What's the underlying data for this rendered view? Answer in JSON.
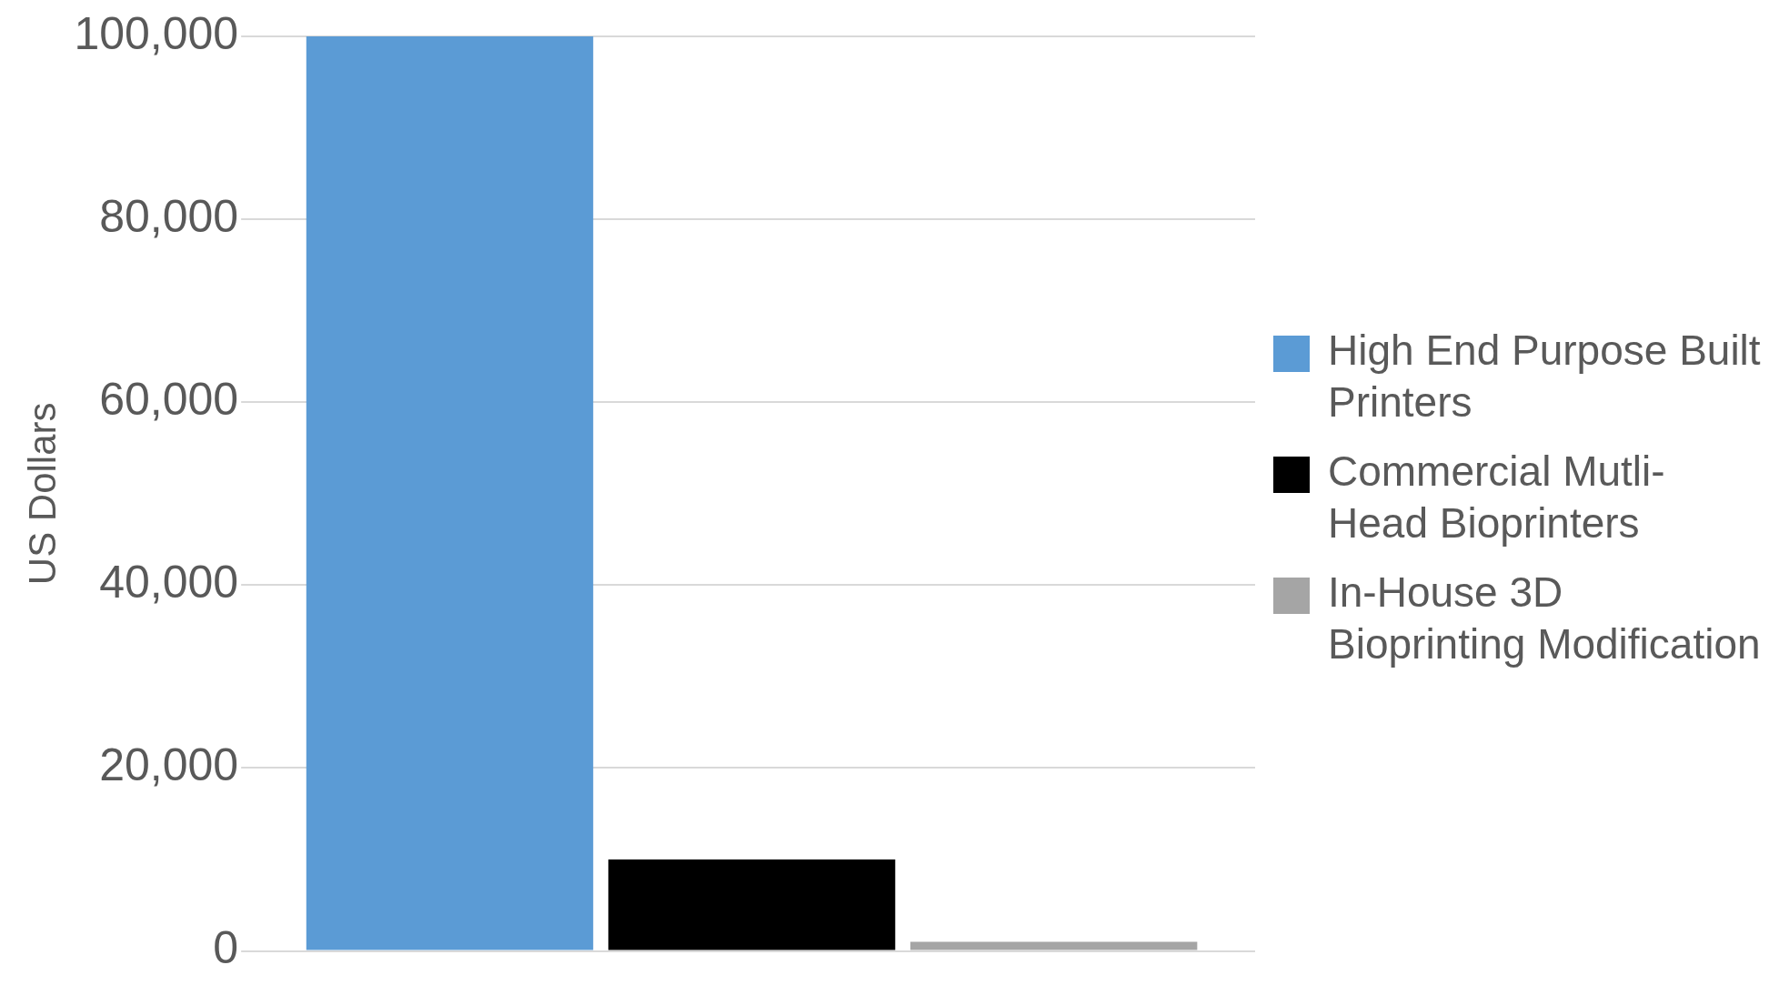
{
  "chart_data": {
    "type": "bar",
    "ylabel": "US Dollars",
    "categories": [
      null
    ],
    "series": [
      {
        "name": "High End Purpose Built Printers",
        "color": "#5b9bd5",
        "values": [
          100000
        ]
      },
      {
        "name": "Commercial Mutli-Head Bioprinters",
        "color": "#000000",
        "values": [
          10000
        ]
      },
      {
        "name": "In-House 3D Bioprinting Modification",
        "color": "#a5a5a5",
        "values": [
          1000
        ]
      }
    ],
    "ylim": [
      0,
      100000
    ],
    "yticks": [
      {
        "value": 0,
        "label": "0"
      },
      {
        "value": 20000,
        "label": "20,000"
      },
      {
        "value": 40000,
        "label": "40,000"
      },
      {
        "value": 60000,
        "label": "60,000"
      },
      {
        "value": 80000,
        "label": "80,000"
      },
      {
        "value": 100000,
        "label": "100,000"
      }
    ],
    "grid": "y",
    "legend": "right"
  }
}
